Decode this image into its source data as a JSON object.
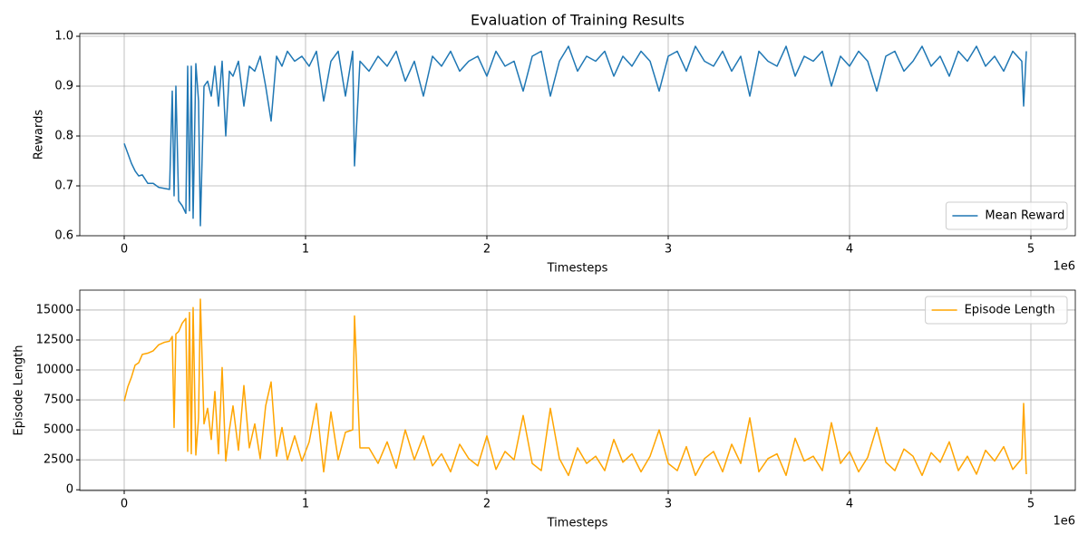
{
  "chart_data": [
    {
      "type": "line",
      "title": "Evaluation of Training Results",
      "x_label": "Timesteps",
      "y_label": "Rewards",
      "x_offset_label": "1e6",
      "x": [
        0,
        20000,
        40000,
        60000,
        80000,
        100000,
        130000,
        160000,
        190000,
        220000,
        250000,
        265000,
        275000,
        285000,
        300000,
        320000,
        340000,
        350000,
        360000,
        370000,
        380000,
        395000,
        410000,
        420000,
        440000,
        460000,
        480000,
        500000,
        520000,
        540000,
        560000,
        580000,
        600000,
        630000,
        660000,
        690000,
        720000,
        750000,
        780000,
        810000,
        840000,
        870000,
        900000,
        940000,
        980000,
        1020000,
        1060000,
        1100000,
        1140000,
        1180000,
        1220000,
        1260000,
        1270000,
        1300000,
        1350000,
        1400000,
        1450000,
        1500000,
        1550000,
        1600000,
        1650000,
        1700000,
        1750000,
        1800000,
        1850000,
        1900000,
        1950000,
        2000000,
        2050000,
        2100000,
        2150000,
        2200000,
        2250000,
        2300000,
        2350000,
        2400000,
        2450000,
        2500000,
        2550000,
        2600000,
        2650000,
        2700000,
        2750000,
        2800000,
        2850000,
        2900000,
        2950000,
        3000000,
        3050000,
        3100000,
        3150000,
        3200000,
        3250000,
        3300000,
        3350000,
        3400000,
        3450000,
        3500000,
        3550000,
        3600000,
        3650000,
        3700000,
        3750000,
        3800000,
        3850000,
        3900000,
        3950000,
        4000000,
        4050000,
        4100000,
        4150000,
        4200000,
        4250000,
        4300000,
        4350000,
        4400000,
        4450000,
        4500000,
        4550000,
        4600000,
        4650000,
        4700000,
        4750000,
        4800000,
        4850000,
        4900000,
        4950000,
        4960000,
        4975000
      ],
      "series": [
        {
          "name": "Mean Reward",
          "color": "#1f77b4",
          "values": [
            0.785,
            0.765,
            0.745,
            0.73,
            0.72,
            0.722,
            0.705,
            0.705,
            0.697,
            0.695,
            0.693,
            0.89,
            0.68,
            0.9,
            0.67,
            0.66,
            0.645,
            0.94,
            0.65,
            0.94,
            0.635,
            0.945,
            0.87,
            0.62,
            0.9,
            0.91,
            0.88,
            0.94,
            0.86,
            0.95,
            0.8,
            0.93,
            0.92,
            0.95,
            0.86,
            0.94,
            0.93,
            0.96,
            0.9,
            0.83,
            0.96,
            0.94,
            0.97,
            0.95,
            0.96,
            0.94,
            0.97,
            0.87,
            0.95,
            0.97,
            0.88,
            0.97,
            0.74,
            0.95,
            0.93,
            0.96,
            0.94,
            0.97,
            0.91,
            0.95,
            0.88,
            0.96,
            0.94,
            0.97,
            0.93,
            0.95,
            0.96,
            0.92,
            0.97,
            0.94,
            0.95,
            0.89,
            0.96,
            0.97,
            0.88,
            0.95,
            0.98,
            0.93,
            0.96,
            0.95,
            0.97,
            0.92,
            0.96,
            0.94,
            0.97,
            0.95,
            0.89,
            0.96,
            0.97,
            0.93,
            0.98,
            0.95,
            0.94,
            0.97,
            0.93,
            0.96,
            0.88,
            0.97,
            0.95,
            0.94,
            0.98,
            0.92,
            0.96,
            0.95,
            0.97,
            0.9,
            0.96,
            0.94,
            0.97,
            0.95,
            0.89,
            0.96,
            0.97,
            0.93,
            0.95,
            0.98,
            0.94,
            0.96,
            0.92,
            0.97,
            0.95,
            0.98,
            0.94,
            0.96,
            0.93,
            0.97,
            0.95,
            0.86,
            0.97
          ]
        }
      ],
      "xlim": [
        -245000,
        5245000
      ],
      "xticks": [
        0,
        {
          "value": 1000000,
          "label": "1"
        },
        {
          "value": 2000000,
          "label": "2"
        },
        {
          "value": 3000000,
          "label": "3"
        },
        {
          "value": 4000000,
          "label": "4"
        },
        {
          "value": 5000000,
          "label": "5"
        }
      ],
      "ylim": [
        0.6,
        1.0055
      ],
      "yticks": [
        0.6,
        0.7,
        0.8,
        0.9,
        {
          "value": 1,
          "label": "1.0"
        }
      ],
      "grid": true,
      "legend": "lower right"
    },
    {
      "type": "line",
      "x_label": "Timesteps",
      "y_label": "Episode Length",
      "x_offset_label": "1e6",
      "x": [
        0,
        20000,
        40000,
        60000,
        80000,
        100000,
        130000,
        160000,
        190000,
        220000,
        250000,
        265000,
        275000,
        285000,
        300000,
        320000,
        340000,
        350000,
        360000,
        370000,
        380000,
        395000,
        410000,
        420000,
        440000,
        460000,
        480000,
        500000,
        520000,
        540000,
        560000,
        580000,
        600000,
        630000,
        660000,
        690000,
        720000,
        750000,
        780000,
        810000,
        840000,
        870000,
        900000,
        940000,
        980000,
        1020000,
        1060000,
        1100000,
        1140000,
        1180000,
        1220000,
        1260000,
        1270000,
        1300000,
        1350000,
        1400000,
        1450000,
        1500000,
        1550000,
        1600000,
        1650000,
        1700000,
        1750000,
        1800000,
        1850000,
        1900000,
        1950000,
        2000000,
        2050000,
        2100000,
        2150000,
        2200000,
        2250000,
        2300000,
        2350000,
        2400000,
        2450000,
        2500000,
        2550000,
        2600000,
        2650000,
        2700000,
        2750000,
        2800000,
        2850000,
        2900000,
        2950000,
        3000000,
        3050000,
        3100000,
        3150000,
        3200000,
        3250000,
        3300000,
        3350000,
        3400000,
        3450000,
        3500000,
        3550000,
        3600000,
        3650000,
        3700000,
        3750000,
        3800000,
        3850000,
        3900000,
        3950000,
        4000000,
        4050000,
        4100000,
        4150000,
        4200000,
        4250000,
        4300000,
        4350000,
        4400000,
        4450000,
        4500000,
        4550000,
        4600000,
        4650000,
        4700000,
        4750000,
        4800000,
        4850000,
        4900000,
        4950000,
        4960000,
        4975000
      ],
      "series": [
        {
          "name": "Episode Length",
          "color": "#ffa500",
          "values": [
            7400,
            8600,
            9400,
            10400,
            10600,
            11300,
            11400,
            11600,
            12100,
            12300,
            12400,
            12800,
            5200,
            13000,
            13200,
            13900,
            14300,
            3200,
            14800,
            3000,
            15200,
            2900,
            6000,
            15900,
            5500,
            6800,
            4200,
            8200,
            3000,
            10200,
            2400,
            5000,
            7000,
            3300,
            8700,
            3500,
            5500,
            2600,
            7000,
            9000,
            2800,
            5200,
            2500,
            4500,
            2400,
            4000,
            7200,
            1500,
            6500,
            2500,
            4800,
            5000,
            14500,
            3500,
            3500,
            2200,
            4000,
            1800,
            5000,
            2500,
            4500,
            2000,
            3000,
            1500,
            3800,
            2600,
            2000,
            4500,
            1700,
            3200,
            2500,
            6200,
            2200,
            1600,
            6800,
            2600,
            1200,
            3500,
            2200,
            2800,
            1600,
            4200,
            2300,
            3000,
            1500,
            2800,
            5000,
            2200,
            1600,
            3600,
            1200,
            2600,
            3200,
            1500,
            3800,
            2200,
            6000,
            1500,
            2600,
            3000,
            1200,
            4300,
            2400,
            2800,
            1600,
            5600,
            2200,
            3200,
            1500,
            2700,
            5200,
            2300,
            1600,
            3400,
            2800,
            1200,
            3100,
            2300,
            4000,
            1600,
            2800,
            1300,
            3300,
            2400,
            3600,
            1700,
            2600,
            7200,
            1300
          ]
        }
      ],
      "xlim": [
        -245000,
        5245000
      ],
      "xticks": [
        0,
        {
          "value": 1000000,
          "label": "1"
        },
        {
          "value": 2000000,
          "label": "2"
        },
        {
          "value": 3000000,
          "label": "3"
        },
        {
          "value": 4000000,
          "label": "4"
        },
        {
          "value": 5000000,
          "label": "5"
        }
      ],
      "ylim": [
        -60,
        16660
      ],
      "yticks": [
        0,
        2500,
        5000,
        7500,
        10000,
        12500,
        15000
      ],
      "grid": true,
      "legend": "upper right"
    }
  ]
}
